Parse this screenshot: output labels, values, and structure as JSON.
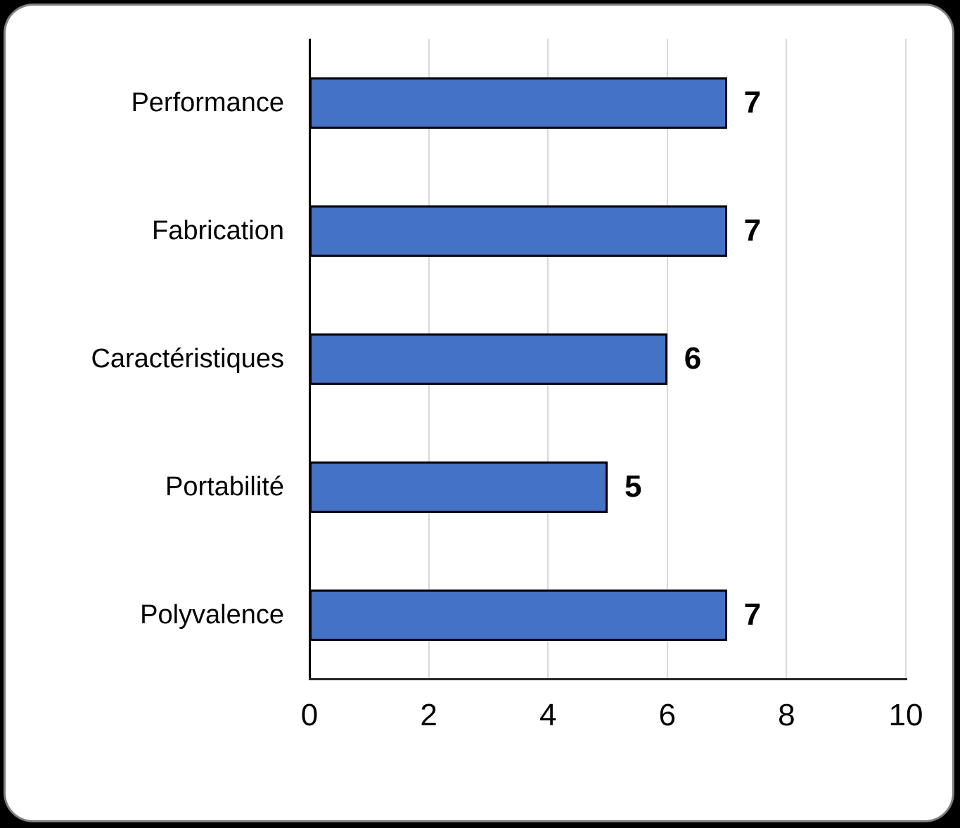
{
  "card": {
    "background": "#ffffff",
    "border_color": "#7f7f7f",
    "outer_background": "#000000"
  },
  "chart_data": {
    "type": "bar",
    "orientation": "horizontal",
    "title": "",
    "xlabel": "",
    "ylabel": "",
    "categories": [
      "Performance",
      "Fabrication",
      "Caractéristiques",
      "Portabilité",
      "Polyvalence"
    ],
    "values": [
      7,
      7,
      6,
      5,
      7
    ],
    "data_labels": [
      "7",
      "7",
      "6",
      "5",
      "7"
    ],
    "xlim": [
      0,
      10
    ],
    "x_ticks": [
      0,
      2,
      4,
      6,
      8,
      10
    ],
    "x_tick_labels": [
      "0",
      "2",
      "4",
      "6",
      "8",
      "10"
    ],
    "grid": "vertical",
    "legend": "none",
    "colors": {
      "bar_fill": "#4472C4",
      "bar_border": "#000000",
      "gridline": "#D9D9D9",
      "axis_y": "#000000",
      "axis_x": "#262626",
      "text": "#000000"
    }
  }
}
